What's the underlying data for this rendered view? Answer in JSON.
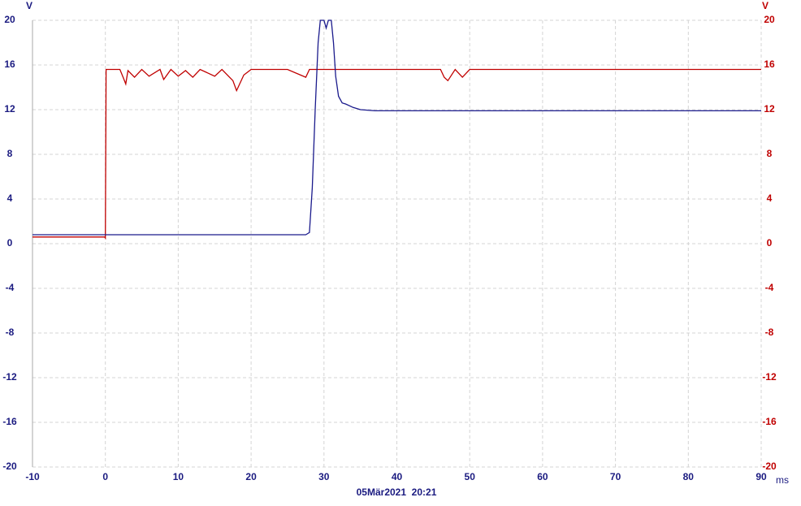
{
  "chart_data": {
    "type": "line",
    "y_unit": "V",
    "y2_unit": "V",
    "x_unit": "ms",
    "timestamp": "05Mär2021  20:21",
    "xlim": [
      -10,
      90
    ],
    "xticks": [
      -10,
      0,
      10,
      20,
      30,
      40,
      50,
      60,
      70,
      80,
      90
    ],
    "ylim": [
      -20,
      20
    ],
    "yticks": [
      -20,
      -16,
      -12,
      -8,
      -4,
      0,
      4,
      8,
      12,
      16,
      20
    ],
    "y2lim": [
      -20,
      20
    ],
    "y2ticks": [
      -20,
      -16,
      -12,
      -8,
      -4,
      0,
      4,
      8,
      12,
      16,
      20
    ],
    "grid": true,
    "y_color": "#1a1a80",
    "y2_color": "#c00000",
    "series": [
      {
        "color": "#c00000",
        "axis": "y2",
        "x": [
          -10,
          -0.1,
          0,
          0.1,
          2,
          2.5,
          2.8,
          3.1,
          4,
          5,
          6,
          7.5,
          8,
          9,
          10,
          11,
          12,
          13,
          15,
          16,
          17.5,
          18,
          19,
          20,
          25,
          27.5,
          28,
          30,
          46,
          46.5,
          47,
          48,
          49,
          50,
          51,
          75,
          90
        ],
        "values": [
          0.6,
          0.6,
          0.5,
          15.6,
          15.6,
          14.8,
          14.3,
          15.5,
          14.9,
          15.6,
          15.0,
          15.6,
          14.7,
          15.6,
          15.0,
          15.5,
          14.9,
          15.6,
          15.0,
          15.6,
          14.6,
          13.7,
          15.1,
          15.6,
          15.6,
          14.9,
          15.6,
          15.6,
          15.6,
          14.9,
          14.6,
          15.6,
          14.9,
          15.6,
          15.6,
          15.6,
          15.6
        ]
      },
      {
        "color": "#1a1a8c",
        "x": [
          -10,
          27.5,
          28,
          28.4,
          28.8,
          29.2,
          29.5,
          30,
          30.3,
          30.6,
          31,
          31.3,
          31.6,
          32,
          32.5,
          33,
          34,
          35,
          37,
          40,
          90
        ],
        "values": [
          0.8,
          0.8,
          1.0,
          5,
          12,
          18,
          20,
          20,
          19.3,
          20,
          20,
          18,
          15,
          13.2,
          12.6,
          12.5,
          12.2,
          12.0,
          11.9,
          11.9,
          11.9
        ]
      }
    ]
  }
}
